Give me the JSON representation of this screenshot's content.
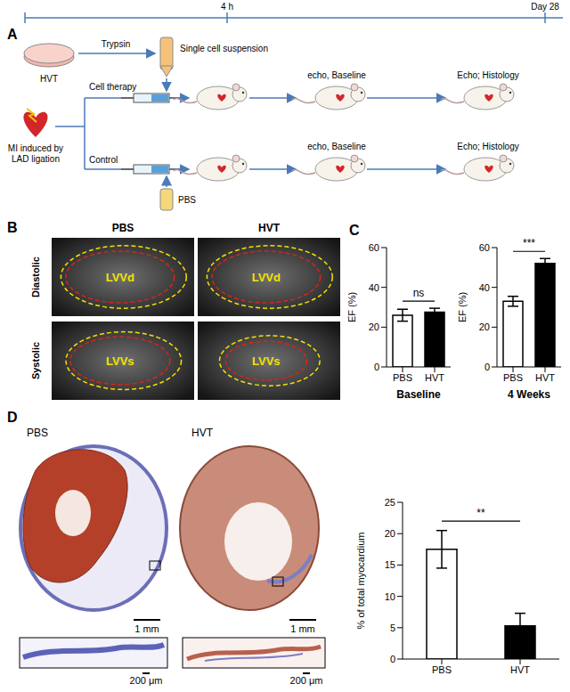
{
  "figure": {
    "A": {
      "letter": "A",
      "timeline": [
        "4 h",
        "Day 28"
      ],
      "source": "HVT",
      "step": "Trypsin",
      "suspension": "Single cell suspension",
      "model": "MI induced by LAD ligation",
      "treatment": "Cell therapy",
      "control": "Control",
      "vehicle": "PBS",
      "baseline": "echo, Baseline",
      "endpoint": "Echo; Histology"
    },
    "B": {
      "letter": "B",
      "columns": [
        "PBS",
        "HVT"
      ],
      "rows": [
        "Diastolic",
        "Systolic"
      ],
      "volumes": [
        "LVVd",
        "LVVs"
      ]
    },
    "C": {
      "letter": "C"
    },
    "D": {
      "letter": "D",
      "columns": [
        "PBS",
        "HVT"
      ],
      "scale_bar": "1 mm",
      "inset_scale_bar": "200 μm"
    }
  },
  "chart_data": [
    {
      "type": "bar",
      "categories": [
        "PBS",
        "HVT"
      ],
      "values": [
        26,
        27.5
      ],
      "error": [
        3,
        2
      ],
      "colors": [
        "#ffffff",
        "#000000"
      ],
      "ylim": [
        0,
        60
      ],
      "yticks": [
        0,
        20,
        40,
        60
      ],
      "y_label": "EF (%)",
      "x_label": "Baseline",
      "annotation": "ns",
      "grid": false
    },
    {
      "type": "bar",
      "categories": [
        "PBS",
        "HVT"
      ],
      "values": [
        33,
        52
      ],
      "error": [
        2.5,
        2.5
      ],
      "colors": [
        "#ffffff",
        "#000000"
      ],
      "ylim": [
        0,
        60
      ],
      "yticks": [
        0,
        20,
        40,
        60
      ],
      "y_label": "EF (%)",
      "x_label": "4 Weeks",
      "annotation": "***",
      "grid": false
    },
    {
      "type": "bar",
      "categories": [
        "PBS",
        "HVT"
      ],
      "values": [
        17.5,
        5.3
      ],
      "error": [
        3,
        2
      ],
      "colors": [
        "#ffffff",
        "#000000"
      ],
      "ylim": [
        0,
        25
      ],
      "yticks": [
        0,
        5,
        10,
        15,
        20,
        25
      ],
      "y_label": "% of total myocardium",
      "annotation": "**",
      "grid": false
    }
  ]
}
